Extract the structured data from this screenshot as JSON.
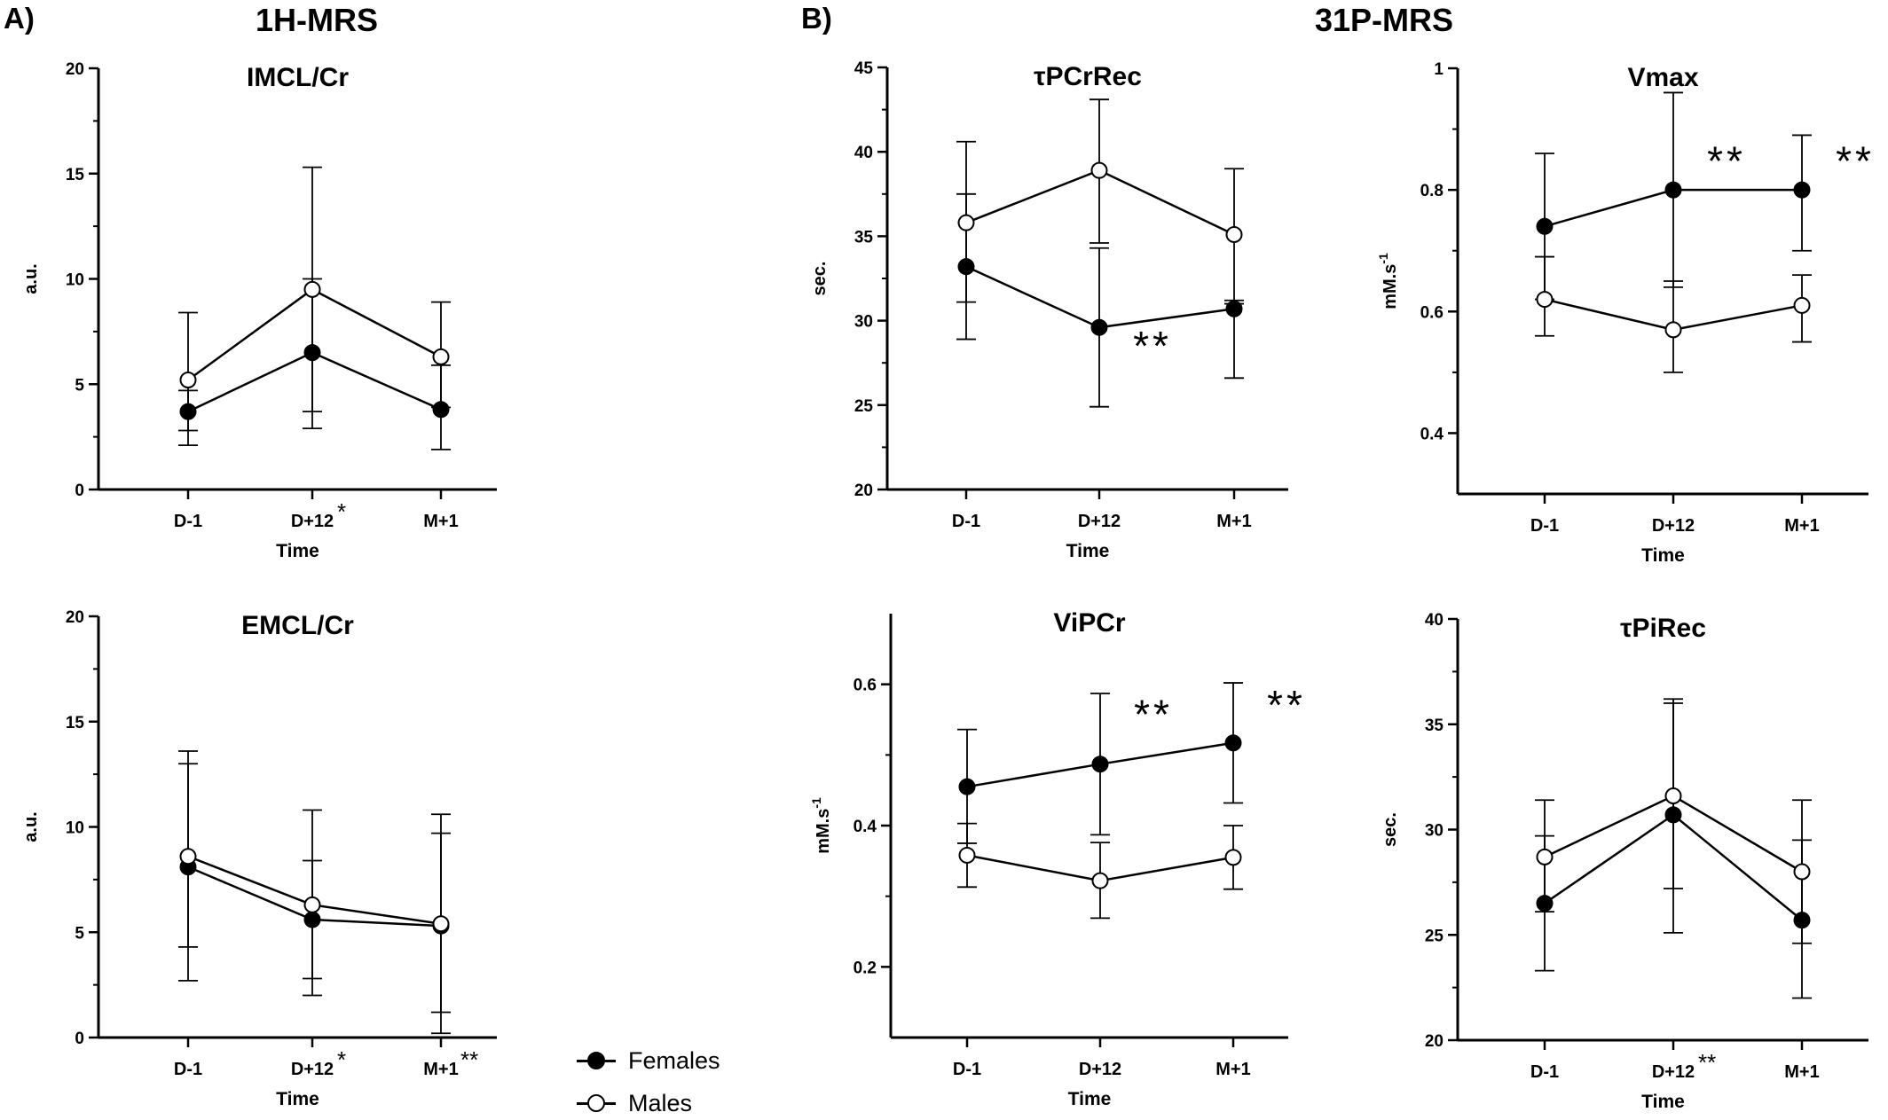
{
  "panel_labels": {
    "a": "A)",
    "b": "B)"
  },
  "section_titles": {
    "a": "1H-MRS",
    "b": "31P-MRS"
  },
  "legend": {
    "females": {
      "label": "Females",
      "marker": "filled-circle"
    },
    "males": {
      "label": "Males",
      "marker": "open-circle"
    }
  },
  "chart_data": [
    {
      "id": "imcl",
      "type": "line",
      "title": "IMCL/Cr",
      "xlabel": "Time",
      "ylabel": "a.u.",
      "categories": [
        "D-1",
        "D+12",
        "M+1"
      ],
      "category_marks": [
        "",
        "*",
        ""
      ],
      "ylim": [
        0,
        20
      ],
      "yticks": [
        0,
        5,
        10,
        15,
        20
      ],
      "series": [
        {
          "name": "Females",
          "marker": "filled",
          "values": [
            3.7,
            6.5,
            3.8
          ],
          "err_low": [
            2.1,
            2.9,
            1.9
          ],
          "err_high": [
            4.7,
            10.0,
            5.9
          ]
        },
        {
          "name": "Males",
          "marker": "open",
          "values": [
            5.2,
            9.5,
            6.3
          ],
          "err_low": [
            2.8,
            3.7,
            3.9
          ],
          "err_high": [
            8.4,
            15.3,
            8.9
          ]
        }
      ],
      "annotations": []
    },
    {
      "id": "emcl",
      "type": "line",
      "title": "EMCL/Cr",
      "xlabel": "Time",
      "ylabel": "a.u.",
      "categories": [
        "D-1",
        "D+12",
        "M+1"
      ],
      "category_marks": [
        "",
        "*",
        "**"
      ],
      "ylim": [
        0,
        20
      ],
      "yticks": [
        0,
        5,
        10,
        15,
        20
      ],
      "series": [
        {
          "name": "Females",
          "marker": "filled",
          "values": [
            8.1,
            5.6,
            5.3
          ],
          "err_low": [
            2.7,
            2.0,
            1.2
          ],
          "err_high": [
            13.0,
            8.4,
            9.7
          ]
        },
        {
          "name": "Males",
          "marker": "open",
          "values": [
            8.6,
            6.3,
            5.4
          ],
          "err_low": [
            4.3,
            2.8,
            0.2
          ],
          "err_high": [
            13.6,
            10.8,
            10.6
          ]
        }
      ],
      "annotations": []
    },
    {
      "id": "tpcr",
      "type": "line",
      "title": "τPCrRec",
      "xlabel": "Time",
      "ylabel": "sec.",
      "categories": [
        "D-1",
        "D+12",
        "M+1"
      ],
      "category_marks": [
        "",
        "",
        ""
      ],
      "ylim": [
        20,
        45
      ],
      "yticks": [
        20,
        25,
        30,
        35,
        40,
        45
      ],
      "series": [
        {
          "name": "Females",
          "marker": "filled",
          "values": [
            33.2,
            29.6,
            30.7
          ],
          "err_low": [
            28.9,
            24.9,
            26.6
          ],
          "err_high": [
            37.5,
            34.3,
            31.2
          ]
        },
        {
          "name": "Males",
          "marker": "open",
          "values": [
            35.8,
            38.9,
            35.1
          ],
          "err_low": [
            31.1,
            34.6,
            31.0
          ],
          "err_high": [
            40.6,
            43.1,
            39.0
          ]
        }
      ],
      "annotations": [
        {
          "text": "**",
          "category": "D+12",
          "value": 28.4
        }
      ]
    },
    {
      "id": "vmax",
      "type": "line",
      "title": "Vmax",
      "xlabel": "Time",
      "ylabel": "mM.s-1",
      "categories": [
        "D-1",
        "D+12",
        "M+1"
      ],
      "category_marks": [
        "",
        "",
        ""
      ],
      "ylim": [
        0.3,
        1.0
      ],
      "yticks": [
        0.4,
        0.6,
        0.8,
        1.0
      ],
      "series": [
        {
          "name": "Females",
          "marker": "filled",
          "values": [
            0.74,
            0.8,
            0.8
          ],
          "err_low": [
            0.62,
            0.64,
            0.7
          ],
          "err_high": [
            0.86,
            0.96,
            0.89
          ]
        },
        {
          "name": "Males",
          "marker": "open",
          "values": [
            0.62,
            0.57,
            0.61
          ],
          "err_low": [
            0.56,
            0.5,
            0.55
          ],
          "err_high": [
            0.69,
            0.65,
            0.66
          ]
        }
      ],
      "annotations": [
        {
          "text": "**",
          "category": "D+12",
          "value": 0.845
        },
        {
          "text": "**",
          "category": "M+1",
          "value": 0.845
        }
      ]
    },
    {
      "id": "vipcr",
      "type": "line",
      "title": "ViPCr",
      "xlabel": "Time",
      "ylabel": "mM.s-1",
      "categories": [
        "D-1",
        "D+12",
        "M+1"
      ],
      "category_marks": [
        "",
        "",
        ""
      ],
      "ylim": [
        0.1,
        0.7
      ],
      "yticks": [
        0.2,
        0.4,
        0.6
      ],
      "series": [
        {
          "name": "Females",
          "marker": "filled",
          "values": [
            0.455,
            0.487,
            0.517
          ],
          "err_low": [
            0.375,
            0.387,
            0.432
          ],
          "err_high": [
            0.536,
            0.587,
            0.602
          ]
        },
        {
          "name": "Males",
          "marker": "open",
          "values": [
            0.358,
            0.322,
            0.355
          ],
          "err_low": [
            0.313,
            0.269,
            0.31
          ],
          "err_high": [
            0.403,
            0.376,
            0.4
          ]
        }
      ],
      "annotations": [
        {
          "text": "**",
          "category": "D+12",
          "value": 0.555
        },
        {
          "text": "**",
          "category": "M+1",
          "value": 0.568
        }
      ]
    },
    {
      "id": "tpi",
      "type": "line",
      "title": "τPiRec",
      "xlabel": "Time",
      "ylabel": "sec.",
      "categories": [
        "D-1",
        "D+12",
        "M+1"
      ],
      "category_marks": [
        "",
        "**",
        ""
      ],
      "ylim": [
        20,
        40
      ],
      "yticks": [
        20,
        25,
        30,
        35,
        40
      ],
      "series": [
        {
          "name": "Females",
          "marker": "filled",
          "values": [
            26.5,
            30.7,
            25.7
          ],
          "err_low": [
            23.3,
            25.1,
            22.0
          ],
          "err_high": [
            29.7,
            36.2,
            29.5
          ]
        },
        {
          "name": "Males",
          "marker": "open",
          "values": [
            28.7,
            31.6,
            28.0
          ],
          "err_low": [
            26.1,
            27.2,
            24.6
          ],
          "err_high": [
            31.4,
            36.0,
            31.4
          ]
        }
      ],
      "annotations": []
    }
  ]
}
